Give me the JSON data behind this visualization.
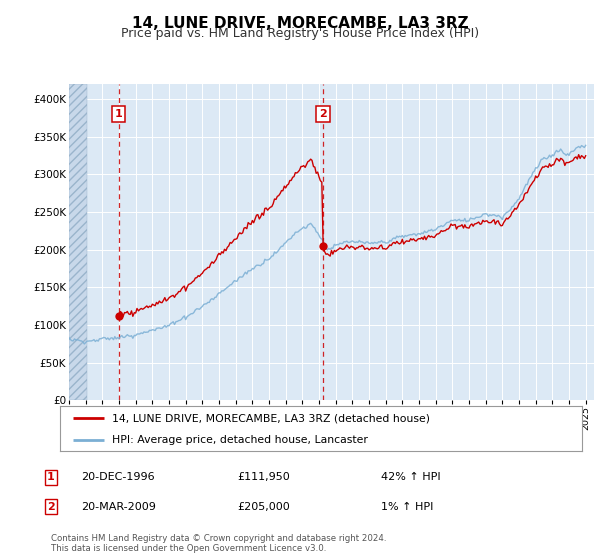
{
  "title": "14, LUNE DRIVE, MORECAMBE, LA3 3RZ",
  "subtitle": "Price paid vs. HM Land Registry's House Price Index (HPI)",
  "ylim": [
    0,
    420000
  ],
  "yticks": [
    0,
    50000,
    100000,
    150000,
    200000,
    250000,
    300000,
    350000,
    400000
  ],
  "ytick_labels": [
    "£0",
    "£50K",
    "£100K",
    "£150K",
    "£200K",
    "£250K",
    "£300K",
    "£350K",
    "£400K"
  ],
  "sale1_date": 1996.97,
  "sale1_price": 111950,
  "sale2_date": 2009.22,
  "sale2_price": 205000,
  "hpi_color": "#7bafd4",
  "sale_color": "#cc0000",
  "bg_color": "#dce9f5",
  "legend_label_sale": "14, LUNE DRIVE, MORECAMBE, LA3 3RZ (detached house)",
  "legend_label_hpi": "HPI: Average price, detached house, Lancaster",
  "footer": "Contains HM Land Registry data © Crown copyright and database right 2024.\nThis data is licensed under the Open Government Licence v3.0.",
  "table_rows": [
    [
      "1",
      "20-DEC-1996",
      "£111,950",
      "42% ↑ HPI"
    ],
    [
      "2",
      "20-MAR-2009",
      "£205,000",
      "1% ↑ HPI"
    ]
  ],
  "xmin": 1994.0,
  "xmax": 2025.5,
  "xticks": [
    1994,
    1995,
    1996,
    1997,
    1998,
    1999,
    2000,
    2001,
    2002,
    2003,
    2004,
    2005,
    2006,
    2007,
    2008,
    2009,
    2010,
    2011,
    2012,
    2013,
    2014,
    2015,
    2016,
    2017,
    2018,
    2019,
    2020,
    2021,
    2022,
    2023,
    2024,
    2025
  ],
  "hpi_x": [
    1994.0,
    1994.08,
    1994.17,
    1994.25,
    1994.33,
    1994.42,
    1994.5,
    1994.58,
    1994.67,
    1994.75,
    1994.83,
    1994.92,
    1995.0,
    1995.08,
    1995.17,
    1995.25,
    1995.33,
    1995.42,
    1995.5,
    1995.58,
    1995.67,
    1995.75,
    1995.83,
    1995.92,
    1996.0,
    1996.08,
    1996.17,
    1996.25,
    1996.33,
    1996.42,
    1996.5,
    1996.58,
    1996.67,
    1996.75,
    1996.83,
    1996.92,
    1997.0,
    1997.08,
    1997.17,
    1997.25,
    1997.33,
    1997.42,
    1997.5,
    1997.58,
    1997.67,
    1997.75,
    1997.83,
    1997.92,
    1998.0,
    1998.08,
    1998.17,
    1998.25,
    1998.33,
    1998.42,
    1998.5,
    1998.58,
    1998.67,
    1998.75,
    1998.83,
    1998.92,
    1999.0,
    1999.08,
    1999.17,
    1999.25,
    1999.33,
    1999.42,
    1999.5,
    1999.58,
    1999.67,
    1999.75,
    1999.83,
    1999.92,
    2000.0,
    2000.08,
    2000.17,
    2000.25,
    2000.33,
    2000.42,
    2000.5,
    2000.58,
    2000.67,
    2000.75,
    2000.83,
    2000.92,
    2001.0,
    2001.08,
    2001.17,
    2001.25,
    2001.33,
    2001.42,
    2001.5,
    2001.58,
    2001.67,
    2001.75,
    2001.83,
    2001.92,
    2002.0,
    2002.08,
    2002.17,
    2002.25,
    2002.33,
    2002.42,
    2002.5,
    2002.58,
    2002.67,
    2002.75,
    2002.83,
    2002.92,
    2003.0,
    2003.08,
    2003.17,
    2003.25,
    2003.33,
    2003.42,
    2003.5,
    2003.58,
    2003.67,
    2003.75,
    2003.83,
    2003.92,
    2004.0,
    2004.08,
    2004.17,
    2004.25,
    2004.33,
    2004.42,
    2004.5,
    2004.58,
    2004.67,
    2004.75,
    2004.83,
    2004.92,
    2005.0,
    2005.08,
    2005.17,
    2005.25,
    2005.33,
    2005.42,
    2005.5,
    2005.58,
    2005.67,
    2005.75,
    2005.83,
    2005.92,
    2006.0,
    2006.08,
    2006.17,
    2006.25,
    2006.33,
    2006.42,
    2006.5,
    2006.58,
    2006.67,
    2006.75,
    2006.83,
    2006.92,
    2007.0,
    2007.08,
    2007.17,
    2007.25,
    2007.33,
    2007.42,
    2007.5,
    2007.58,
    2007.67,
    2007.75,
    2007.83,
    2007.92,
    2008.0,
    2008.08,
    2008.17,
    2008.25,
    2008.33,
    2008.42,
    2008.5,
    2008.58,
    2008.67,
    2008.75,
    2008.83,
    2008.92,
    2009.0,
    2009.08,
    2009.17,
    2009.25,
    2009.33,
    2009.42,
    2009.5,
    2009.58,
    2009.67,
    2009.75,
    2009.83,
    2009.92,
    2010.0,
    2010.08,
    2010.17,
    2010.25,
    2010.33,
    2010.42,
    2010.5,
    2010.58,
    2010.67,
    2010.75,
    2010.83,
    2010.92,
    2011.0,
    2011.08,
    2011.17,
    2011.25,
    2011.33,
    2011.42,
    2011.5,
    2011.58,
    2011.67,
    2011.75,
    2011.83,
    2011.92,
    2012.0,
    2012.08,
    2012.17,
    2012.25,
    2012.33,
    2012.42,
    2012.5,
    2012.58,
    2012.67,
    2012.75,
    2012.83,
    2012.92,
    2013.0,
    2013.08,
    2013.17,
    2013.25,
    2013.33,
    2013.42,
    2013.5,
    2013.58,
    2013.67,
    2013.75,
    2013.83,
    2013.92,
    2014.0,
    2014.08,
    2014.17,
    2014.25,
    2014.33,
    2014.42,
    2014.5,
    2014.58,
    2014.67,
    2014.75,
    2014.83,
    2014.92,
    2015.0,
    2015.08,
    2015.17,
    2015.25,
    2015.33,
    2015.42,
    2015.5,
    2015.58,
    2015.67,
    2015.75,
    2015.83,
    2015.92,
    2016.0,
    2016.08,
    2016.17,
    2016.25,
    2016.33,
    2016.42,
    2016.5,
    2016.58,
    2016.67,
    2016.75,
    2016.83,
    2016.92,
    2017.0,
    2017.08,
    2017.17,
    2017.25,
    2017.33,
    2017.42,
    2017.5,
    2017.58,
    2017.67,
    2017.75,
    2017.83,
    2017.92,
    2018.0,
    2018.08,
    2018.17,
    2018.25,
    2018.33,
    2018.42,
    2018.5,
    2018.58,
    2018.67,
    2018.75,
    2018.83,
    2018.92,
    2019.0,
    2019.08,
    2019.17,
    2019.25,
    2019.33,
    2019.42,
    2019.5,
    2019.58,
    2019.67,
    2019.75,
    2019.83,
    2019.92,
    2020.0,
    2020.08,
    2020.17,
    2020.25,
    2020.33,
    2020.42,
    2020.5,
    2020.58,
    2020.67,
    2020.75,
    2020.83,
    2020.92,
    2021.0,
    2021.08,
    2021.17,
    2021.25,
    2021.33,
    2021.42,
    2021.5,
    2021.58,
    2021.67,
    2021.75,
    2021.83,
    2021.92,
    2022.0,
    2022.08,
    2022.17,
    2022.25,
    2022.33,
    2022.42,
    2022.5,
    2022.58,
    2022.67,
    2022.75,
    2022.83,
    2022.92,
    2023.0,
    2023.08,
    2023.17,
    2023.25,
    2023.33,
    2023.42,
    2023.5,
    2023.58,
    2023.67,
    2023.75,
    2023.83,
    2023.92,
    2024.0,
    2024.08,
    2024.17,
    2024.25,
    2024.33,
    2024.42,
    2024.5,
    2024.58,
    2024.67,
    2024.75,
    2024.83,
    2024.92,
    2025.0
  ]
}
